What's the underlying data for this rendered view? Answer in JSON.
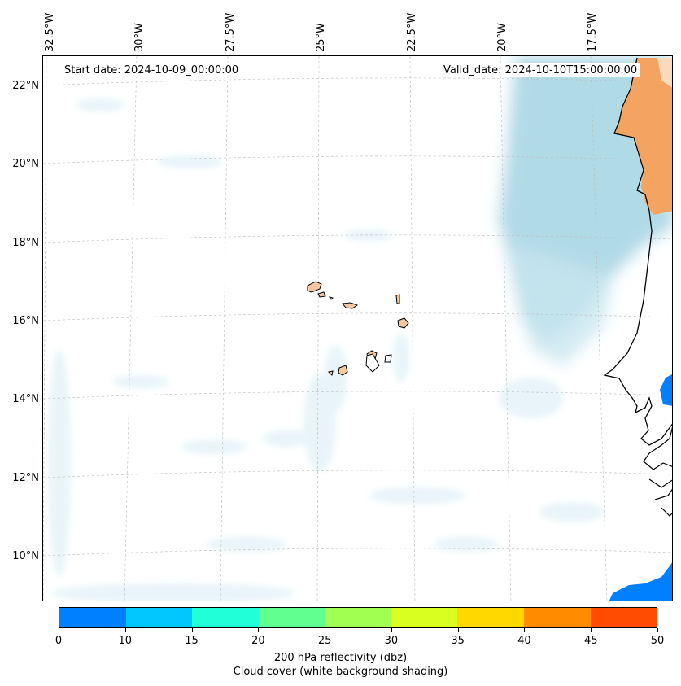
{
  "map": {
    "start_label": "Start date: 2024-10-09_00:00:00",
    "valid_label": "Valid_date: 2024-10-10T15:00:00.00",
    "lon_labels": [
      "32.5°W",
      "30°W",
      "27.5°W",
      "25°W",
      "22.5°W",
      "20°W",
      "17.5°W"
    ],
    "lat_labels": [
      "22°N",
      "20°N",
      "18°N",
      "16°N",
      "14°N",
      "12°N",
      "10°N"
    ],
    "land_color": "#f4a460",
    "island_color": "#f8c7a0",
    "cloud_color": "#add8e6",
    "reflectivity_color_low": "#0080ff"
  },
  "colorbar": {
    "ticks": [
      "0",
      "10",
      "15",
      "20",
      "25",
      "30",
      "35",
      "40",
      "45",
      "50"
    ],
    "colors": [
      "#0080ff",
      "#00c8ff",
      "#20ffd8",
      "#60ff90",
      "#a0ff50",
      "#d8ff20",
      "#ffd800",
      "#ff8c00",
      "#ff4c00"
    ],
    "label_line1": "200 hPa reflectivity (dbz)",
    "label_line2": "Cloud cover (white background shading)"
  }
}
